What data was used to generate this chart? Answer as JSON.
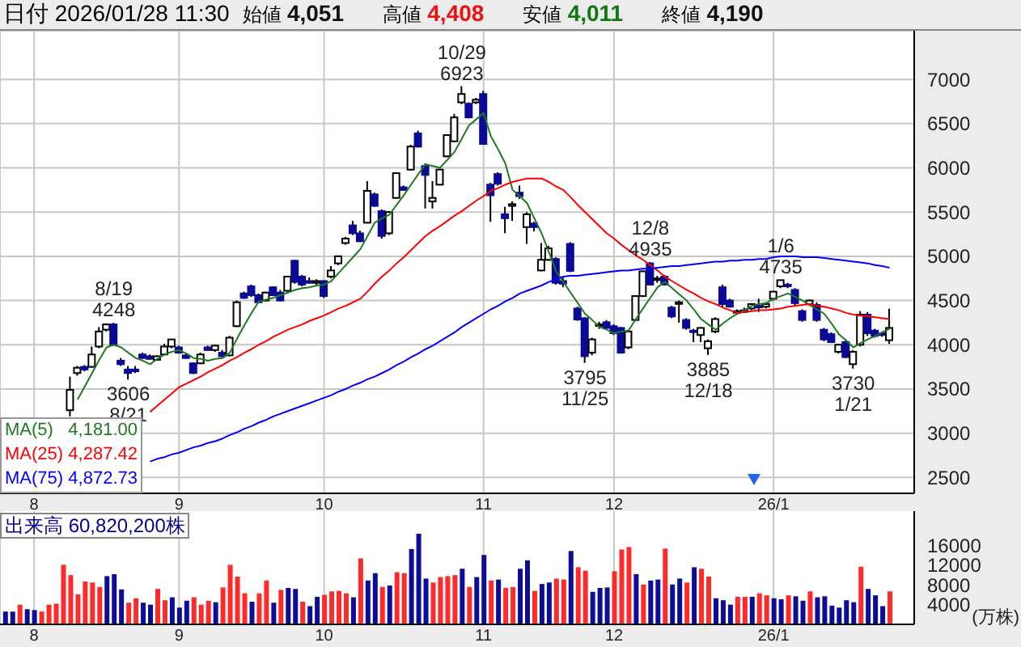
{
  "chart_data": [
    {
      "type": "candlestick",
      "title": "日付 2026/01/28 11:30",
      "annotations": [
        "始値 4,051",
        "高値 4,408",
        "安値 4,011",
        "終値 4,190",
        {
          "text": "8/19\n4248",
          "y": 4248
        },
        {
          "text": "3606\n8/21",
          "y": 3606
        },
        {
          "text": "10/29\n6923",
          "y": 6923
        },
        {
          "text": "3795\n11/25",
          "y": 3795
        },
        {
          "text": "12/8\n4935",
          "y": 4935
        },
        {
          "text": "3885\n12/18",
          "y": 3885
        },
        {
          "text": "1/6\n4735",
          "y": 4735
        },
        {
          "text": "3730\n1/21",
          "y": 3730
        }
      ],
      "categories": [
        null,
        null,
        null,
        null,
        "8",
        null,
        null,
        null,
        null,
        null,
        null,
        null,
        null,
        null,
        null,
        null,
        null,
        null,
        null,
        null,
        null,
        null,
        null,
        null,
        "9",
        null,
        null,
        null,
        null,
        null,
        null,
        null,
        null,
        null,
        null,
        null,
        null,
        null,
        null,
        null,
        null,
        null,
        null,
        null,
        "10",
        null,
        null,
        null,
        null,
        null,
        null,
        null,
        null,
        null,
        null,
        null,
        null,
        null,
        null,
        null,
        null,
        null,
        null,
        null,
        null,
        null,
        "11",
        null,
        null,
        null,
        null,
        null,
        null,
        null,
        null,
        null,
        null,
        null,
        null,
        null,
        null,
        null,
        null,
        null,
        "12",
        null,
        null,
        null,
        null,
        null,
        null,
        null,
        null,
        null,
        null,
        null,
        null,
        null,
        null,
        null,
        null,
        null,
        null,
        null,
        null,
        null,
        "26/1",
        null,
        null,
        null,
        null,
        null,
        null,
        null,
        null,
        null,
        null,
        null,
        null,
        null,
        null,
        null,
        null
      ],
      "ohlc": [
        null,
        null,
        null,
        null,
        null,
        null,
        null,
        null,
        null,
        [
          3260,
          3640,
          3190,
          3490
        ],
        [
          3680,
          3760,
          3650,
          3740
        ],
        [
          3750,
          3770,
          3700,
          3720
        ],
        [
          3750,
          3980,
          3740,
          3890
        ],
        [
          3980,
          4200,
          3960,
          4150
        ],
        [
          4170,
          4240,
          4150,
          4230
        ],
        [
          4230,
          4248,
          3990,
          4000
        ],
        [
          3820,
          3850,
          3760,
          3780
        ],
        [
          3720,
          3760,
          3606,
          3680
        ],
        [
          3720,
          3760,
          3680,
          3700
        ],
        [
          3890,
          3910,
          3840,
          3850
        ],
        [
          3870,
          3890,
          3830,
          3840
        ],
        [
          3830,
          3880,
          3820,
          3870
        ],
        [
          3890,
          4010,
          3880,
          3980
        ],
        [
          3980,
          4060,
          3960,
          4060
        ],
        [
          3970,
          3990,
          3900,
          3910
        ],
        [
          3880,
          3900,
          3840,
          3850
        ],
        [
          3790,
          3800,
          3670,
          3680
        ],
        [
          3790,
          3910,
          3780,
          3890
        ],
        [
          3970,
          3990,
          3930,
          3940
        ],
        [
          3940,
          4000,
          3920,
          3990
        ],
        [
          3910,
          3940,
          3860,
          3870
        ],
        [
          3880,
          4100,
          3870,
          4080
        ],
        [
          4210,
          4500,
          4200,
          4480
        ],
        [
          4580,
          4600,
          4520,
          4530
        ],
        [
          4660,
          4680,
          4540,
          4560
        ],
        [
          4560,
          4580,
          4470,
          4480
        ],
        [
          4500,
          4600,
          4490,
          4590
        ],
        [
          4650,
          4660,
          4550,
          4560
        ],
        [
          4590,
          4620,
          4490,
          4500
        ],
        [
          4610,
          4780,
          4600,
          4770
        ],
        [
          4950,
          4960,
          4690,
          4710
        ],
        [
          4770,
          4790,
          4660,
          4680
        ],
        [
          4720,
          4760,
          4690,
          4700
        ],
        [
          4700,
          4740,
          4660,
          4720
        ],
        [
          4720,
          4730,
          4530,
          4550
        ],
        [
          4770,
          4890,
          4750,
          4840
        ],
        [
          4920,
          5010,
          4900,
          5000
        ],
        [
          5150,
          5220,
          5130,
          5200
        ],
        [
          5350,
          5400,
          5240,
          5260
        ],
        [
          5260,
          5290,
          5160,
          5170
        ],
        [
          5380,
          5850,
          5370,
          5740
        ],
        [
          5700,
          5720,
          5560,
          5570
        ],
        [
          5510,
          5530,
          5200,
          5230
        ],
        [
          5260,
          5510,
          5240,
          5500
        ],
        [
          5660,
          5950,
          5650,
          5940
        ],
        [
          5780,
          5800,
          5740,
          5750
        ],
        [
          5980,
          6260,
          5970,
          6240
        ],
        [
          6390,
          6420,
          6230,
          6240
        ],
        [
          6020,
          6050,
          5540,
          5920
        ],
        [
          5620,
          5850,
          5540,
          5660
        ],
        [
          5810,
          5990,
          5800,
          5980
        ],
        [
          6130,
          6380,
          6120,
          6370
        ],
        [
          6300,
          6610,
          6290,
          6570
        ],
        [
          6740,
          6923,
          6720,
          6835
        ],
        [
          6725,
          6740,
          6560,
          6570
        ],
        [
          6740,
          6790,
          6720,
          6770
        ],
        [
          6835,
          6870,
          6260,
          6270
        ],
        [
          5810,
          5830,
          5390,
          5690
        ],
        [
          5930,
          5950,
          5800,
          5820
        ],
        [
          5475,
          5560,
          5260,
          5430
        ],
        [
          5570,
          5620,
          5400,
          5590
        ],
        [
          5720,
          5800,
          5650,
          5680
        ],
        [
          5330,
          5500,
          5140,
          5475
        ],
        [
          5370,
          5390,
          5280,
          5330
        ],
        [
          4840,
          5150,
          4830,
          4960
        ],
        [
          4960,
          5120,
          4950,
          5090
        ],
        [
          4970,
          4990,
          4680,
          4700
        ],
        [
          4720,
          4760,
          4650,
          4690
        ],
        [
          5140,
          5160,
          4820,
          4835
        ],
        [
          4410,
          4430,
          4270,
          4285
        ],
        [
          4300,
          4310,
          3795,
          3870
        ],
        [
          3910,
          4080,
          3880,
          4060
        ],
        [
          4220,
          4260,
          4180,
          4230
        ],
        [
          4255,
          4280,
          4170,
          4190
        ],
        [
          4210,
          4230,
          4110,
          4130
        ],
        [
          4190,
          4200,
          3900,
          3910
        ],
        [
          3970,
          4170,
          3950,
          4150
        ],
        [
          4280,
          4560,
          4270,
          4550
        ],
        [
          4550,
          4840,
          4540,
          4830
        ],
        [
          4920,
          4935,
          4670,
          4680
        ],
        [
          4740,
          4780,
          4700,
          4750
        ],
        [
          4770,
          4790,
          4670,
          4680
        ],
        [
          4420,
          4440,
          4300,
          4320
        ],
        [
          4470,
          4500,
          4250,
          4480
        ],
        [
          4280,
          4300,
          4170,
          4190
        ],
        [
          4160,
          4180,
          4030,
          4150
        ],
        [
          4110,
          4200,
          4030,
          4190
        ],
        [
          3960,
          4060,
          3885,
          4040
        ],
        [
          4150,
          4310,
          4130,
          4290
        ],
        [
          4650,
          4680,
          4430,
          4460
        ],
        [
          4500,
          4520,
          4420,
          4430
        ],
        [
          4370,
          4400,
          4340,
          4380
        ],
        [
          4390,
          4420,
          4360,
          4380
        ],
        [
          4410,
          4470,
          4390,
          4460
        ],
        [
          4440,
          4520,
          4370,
          4430
        ],
        [
          4430,
          4480,
          4410,
          4460
        ],
        [
          4520,
          4610,
          4500,
          4600
        ],
        [
          4660,
          4735,
          4640,
          4730
        ],
        [
          4680,
          4700,
          4640,
          4660
        ],
        [
          4620,
          4640,
          4440,
          4470
        ],
        [
          4380,
          4400,
          4260,
          4280
        ],
        [
          4460,
          4510,
          4440,
          4500
        ],
        [
          4450,
          4480,
          4260,
          4280
        ],
        [
          4170,
          4190,
          4040,
          4060
        ],
        [
          4120,
          4140,
          4020,
          4030
        ],
        [
          3920,
          4010,
          3900,
          4000
        ],
        [
          4030,
          4050,
          3850,
          3860
        ],
        [
          3780,
          3940,
          3730,
          3920
        ],
        [
          4000,
          4380,
          3980,
          4340
        ],
        [
          4340,
          4370,
          4100,
          4130
        ],
        [
          4160,
          4180,
          4080,
          4100
        ],
        [
          4130,
          4150,
          4090,
          4110
        ],
        [
          4051,
          4408,
          4011,
          4190
        ]
      ],
      "series": [
        {
          "type": "line",
          "name": "MA(5) 4,181.00",
          "color": "#1f7a1f",
          "values": [
            null,
            null,
            null,
            null,
            null,
            null,
            null,
            null,
            null,
            null,
            3380,
            3530,
            3680,
            3830,
            3970,
            4000,
            3970,
            3910,
            3850,
            3820,
            3780,
            3840,
            3890,
            3920,
            3940,
            3900,
            3850,
            3840,
            3820,
            3840,
            3850,
            3910,
            4070,
            4220,
            4360,
            4490,
            4510,
            4530,
            4560,
            4590,
            4620,
            4640,
            4650,
            4670,
            4680,
            4720,
            4810,
            4900,
            4990,
            5080,
            5230,
            5380,
            5430,
            5470,
            5580,
            5690,
            5810,
            5930,
            6040,
            6020,
            6000,
            6090,
            6180,
            6330,
            6480,
            6550,
            6620,
            6360,
            6210,
            6050,
            5750,
            5680,
            5600,
            5430,
            5260,
            5050,
            4830,
            4710,
            4590,
            4470,
            4350,
            4280,
            4200,
            4170,
            4130,
            4150,
            4160,
            4290,
            4410,
            4530,
            4650,
            4710,
            4640,
            4570,
            4500,
            4400,
            4290,
            4230,
            4170,
            4240,
            4300,
            4350,
            4390,
            4440,
            4460,
            4470,
            4520,
            4550,
            4580,
            4540,
            4500,
            4450,
            4400,
            4350,
            4240,
            4120,
            4050,
            3970,
            4020,
            4060,
            4100,
            4140,
            4180
          ]
        },
        {
          "type": "line",
          "name": "MA(25) 4,287.42",
          "color": "#ff0000",
          "values": [
            null,
            null,
            null,
            null,
            null,
            null,
            null,
            null,
            null,
            null,
            null,
            null,
            null,
            null,
            null,
            null,
            null,
            null,
            null,
            null,
            3240,
            3310,
            3380,
            3450,
            3520,
            3560,
            3600,
            3640,
            3690,
            3730,
            3770,
            3820,
            3860,
            3910,
            3950,
            4000,
            4040,
            4090,
            4130,
            4170,
            4200,
            4230,
            4270,
            4300,
            4330,
            4370,
            4410,
            4440,
            4480,
            4520,
            4600,
            4690,
            4770,
            4840,
            4920,
            4990,
            5070,
            5150,
            5230,
            5290,
            5340,
            5400,
            5460,
            5510,
            5570,
            5630,
            5680,
            5740,
            5770,
            5810,
            5840,
            5860,
            5880,
            5880,
            5880,
            5840,
            5790,
            5750,
            5670,
            5580,
            5500,
            5420,
            5340,
            5260,
            5200,
            5130,
            5070,
            5010,
            4960,
            4900,
            4840,
            4770,
            4720,
            4670,
            4620,
            4580,
            4530,
            4490,
            4460,
            4420,
            4390,
            4360,
            4370,
            4380,
            4390,
            4390,
            4400,
            4410,
            4430,
            4440,
            4450,
            4460,
            4440,
            4430,
            4410,
            4390,
            4360,
            4340,
            4330,
            4320,
            4310,
            4300,
            4290
          ]
        },
        {
          "type": "line",
          "name": "MA(75) 4,872.73",
          "color": "#0000ff",
          "values": [
            null,
            null,
            null,
            null,
            null,
            null,
            null,
            null,
            null,
            null,
            null,
            null,
            null,
            null,
            null,
            null,
            null,
            null,
            null,
            null,
            2680,
            2710,
            2730,
            2760,
            2780,
            2810,
            2840,
            2860,
            2890,
            2910,
            2940,
            2980,
            3010,
            3050,
            3080,
            3120,
            3150,
            3190,
            3220,
            3250,
            3280,
            3310,
            3340,
            3370,
            3400,
            3430,
            3470,
            3500,
            3540,
            3570,
            3610,
            3640,
            3680,
            3720,
            3770,
            3810,
            3860,
            3900,
            3950,
            3990,
            4040,
            4090,
            4140,
            4200,
            4250,
            4300,
            4350,
            4400,
            4440,
            4490,
            4530,
            4580,
            4610,
            4640,
            4670,
            4710,
            4740,
            4770,
            4780,
            4780,
            4790,
            4800,
            4810,
            4820,
            4830,
            4840,
            4840,
            4850,
            4860,
            4860,
            4870,
            4880,
            4890,
            4890,
            4900,
            4910,
            4920,
            4930,
            4940,
            4940,
            4950,
            4950,
            4960,
            4960,
            4970,
            4970,
            4990,
            5000,
            5000,
            5000,
            4990,
            4990,
            4990,
            4980,
            4970,
            4960,
            4950,
            4940,
            4930,
            4920,
            4900,
            4890,
            4870
          ]
        }
      ],
      "ylim": [
        2320,
        7550
      ],
      "yticks": [
        2500,
        3000,
        3500,
        4000,
        4500,
        5000,
        5500,
        6000,
        6500,
        7000
      ],
      "grid": true,
      "legend": "bottom left"
    },
    {
      "type": "bar",
      "title": "出来高 60,820,200株",
      "ylabel": "(万株)",
      "categories": [
        null,
        null,
        null,
        null,
        "8",
        null,
        null,
        null,
        null,
        null,
        null,
        null,
        null,
        null,
        null,
        null,
        null,
        null,
        null,
        null,
        null,
        null,
        null,
        null,
        "9",
        null,
        null,
        null,
        null,
        null,
        null,
        null,
        null,
        null,
        null,
        null,
        null,
        null,
        null,
        null,
        null,
        null,
        null,
        null,
        "10",
        null,
        null,
        null,
        null,
        null,
        null,
        null,
        null,
        null,
        null,
        null,
        null,
        null,
        null,
        null,
        null,
        null,
        null,
        null,
        null,
        null,
        "11",
        null,
        null,
        null,
        null,
        null,
        null,
        null,
        null,
        null,
        null,
        null,
        null,
        null,
        null,
        null,
        null,
        null,
        "12",
        null,
        null,
        null,
        null,
        null,
        null,
        null,
        null,
        null,
        null,
        null,
        null,
        null,
        null,
        null,
        null,
        null,
        null,
        null,
        null,
        null,
        "26/1",
        null,
        null,
        null,
        null,
        null,
        null,
        null,
        null,
        null,
        null,
        null,
        null,
        null,
        null,
        null,
        null
      ],
      "values": [
        2600,
        2600,
        4000,
        3100,
        2900,
        2600,
        4000,
        4200,
        12100,
        10000,
        6100,
        8700,
        8500,
        7600,
        9800,
        10200,
        7100,
        4400,
        5300,
        4400,
        4000,
        7200,
        4900,
        5500,
        3400,
        4800,
        5500,
        4000,
        4800,
        4500,
        7500,
        12100,
        9700,
        6300,
        4600,
        6300,
        8900,
        4400,
        7000,
        7400,
        7200,
        4600,
        3700,
        5600,
        6000,
        6700,
        6800,
        6300,
        5500,
        13400,
        8900,
        10400,
        7600,
        7900,
        10600,
        10400,
        15300,
        18400,
        9300,
        8500,
        9600,
        9800,
        10000,
        11300,
        7600,
        9600,
        14100,
        8900,
        9100,
        7400,
        7600,
        11300,
        13000,
        6800,
        8200,
        8500,
        9300,
        9100,
        14900,
        11600,
        10900,
        6600,
        7400,
        7500,
        10800,
        15200,
        15700,
        10200,
        8100,
        8900,
        9100,
        15400,
        8100,
        9300,
        8500,
        11600,
        11300,
        9700,
        5300,
        4900,
        4000,
        5600,
        5600,
        5600,
        6300,
        5900,
        5300,
        5100,
        5900,
        5700,
        4800,
        6700,
        5500,
        5700,
        3800,
        3400,
        4900,
        4500,
        11700,
        7200,
        5900,
        3700,
        6700
      ],
      "colors": [
        "#0d0d99",
        "#0d0d99",
        "#ff2a2a",
        "#0d0d99",
        "#0d0d99",
        "#ff2a2a",
        "#ff2a2a",
        "#ff2a2a",
        "#ff2a2a",
        "#ff2a2a",
        "#ff2a2a",
        "#ff2a2a",
        "#ff2a2a",
        "#ff2a2a",
        "#0d0d99",
        "#0d0d99",
        "#0d0d99",
        "#ff2a2a",
        "#ff2a2a",
        "#0d0d99",
        "#0d0d99",
        "#ff2a2a",
        "#ff2a2a",
        "#0d0d99",
        "#0d0d99",
        "#0d0d99",
        "#ff2a2a",
        "#ff2a2a",
        "#ff2a2a",
        "#0d0d99",
        "#ff2a2a",
        "#ff2a2a",
        "#ff2a2a",
        "#ff2a2a",
        "#0d0d99",
        "#ff2a2a",
        "#ff2a2a",
        "#0d0d99",
        "#ff2a2a",
        "#0d0d99",
        "#0d0d99",
        "#ff2a2a",
        "#0d0d99",
        "#0d0d99",
        "#ff2a2a",
        "#ff2a2a",
        "#ff2a2a",
        "#ff2a2a",
        "#0d0d99",
        "#ff2a2a",
        "#0d0d99",
        "#0d0d99",
        "#ff2a2a",
        "#0d0d99",
        "#ff2a2a",
        "#ff2a2a",
        "#0d0d99",
        "#0d0d99",
        "#0d0d99",
        "#ff2a2a",
        "#ff2a2a",
        "#ff2a2a",
        "#ff2a2a",
        "#0d0d99",
        "#ff2a2a",
        "#0d0d99",
        "#0d0d99",
        "#ff2a2a",
        "#0d0d99",
        "#ff2a2a",
        "#ff2a2a",
        "#0d0d99",
        "#0d0d99",
        "#ff2a2a",
        "#0d0d99",
        "#0d0d99",
        "#ff2a2a",
        "#ff2a2a",
        "#0d0d99",
        "#ff2a2a",
        "#ff2a2a",
        "#0d0d99",
        "#0d0d99",
        "#0d0d99",
        "#ff2a2a",
        "#ff2a2a",
        "#ff2a2a",
        "#0d0d99",
        "#ff2a2a",
        "#0d0d99",
        "#0d0d99",
        "#ff2a2a",
        "#0d0d99",
        "#0d0d99",
        "#ff2a2a",
        "#0d0d99",
        "#ff2a2a",
        "#ff2a2a",
        "#0d0d99",
        "#0d0d99",
        "#0d0d99",
        "#ff2a2a",
        "#ff2a2a",
        "#0d0d99",
        "#ff2a2a",
        "#ff2a2a",
        "#0d0d99",
        "#0d0d99",
        "#ff2a2a",
        "#0d0d99",
        "#0d0d99",
        "#ff2a2a",
        "#0d0d99",
        "#0d0d99",
        "#0d0d99",
        "#0d0d99",
        "#0d0d99",
        "#0d0d99",
        "#ff2a2a",
        "#0d0d99",
        "#0d0d99",
        "#0d0d99",
        "#ff2a2a"
      ],
      "ylim": [
        0,
        23000
      ],
      "yticks": [
        4000,
        8000,
        12000,
        16000
      ],
      "grid": "x"
    }
  ]
}
